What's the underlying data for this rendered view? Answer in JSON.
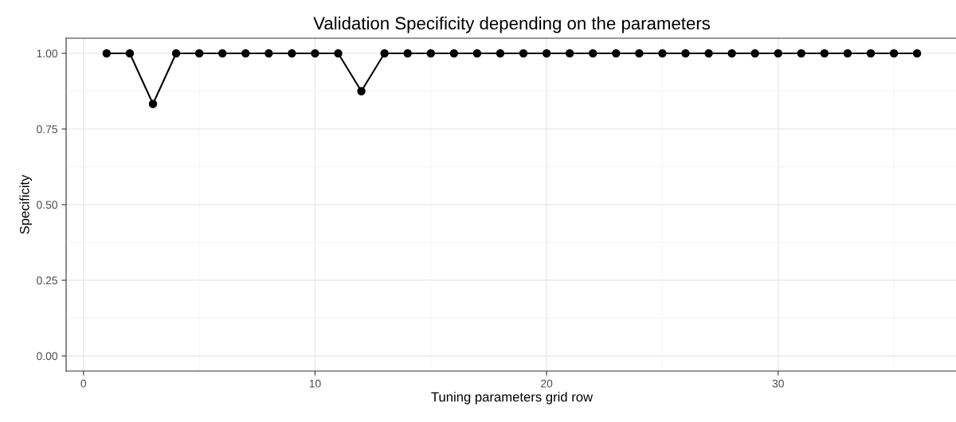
{
  "chart_data": {
    "type": "line",
    "title": "Validation Specificity depending on the parameters",
    "xlabel": "Tuning parameters grid row",
    "ylabel": "Specificity",
    "x": [
      1,
      2,
      3,
      4,
      5,
      6,
      7,
      8,
      9,
      10,
      11,
      12,
      13,
      14,
      15,
      16,
      17,
      18,
      19,
      20,
      21,
      22,
      23,
      24,
      25,
      26,
      27,
      28,
      29,
      30,
      31,
      32,
      33,
      34,
      35,
      36
    ],
    "series": [
      {
        "color": "#000000",
        "values": [
          1,
          1,
          0.833,
          1,
          1,
          1,
          1,
          1,
          1,
          1,
          1,
          0.875,
          1,
          1,
          1,
          1,
          1,
          1,
          1,
          1,
          1,
          1,
          1,
          1,
          1,
          1,
          1,
          1,
          1,
          1,
          1,
          1,
          1,
          1,
          1,
          1
        ]
      }
    ],
    "xlim": [
      -0.75,
      37.75
    ],
    "xticks": [
      0,
      10,
      20,
      30
    ],
    "ylim": [
      -0.05,
      1.05
    ],
    "yticks": [
      {
        "value": 0,
        "label": "0.00"
      },
      {
        "value": 0.25,
        "label": "0.25"
      },
      {
        "value": 0.5,
        "label": "0.50"
      },
      {
        "value": 0.75,
        "label": "0.75"
      },
      {
        "value": 1,
        "label": "1.00"
      }
    ],
    "grid": true,
    "marker": "circle",
    "line_style": "solid"
  }
}
